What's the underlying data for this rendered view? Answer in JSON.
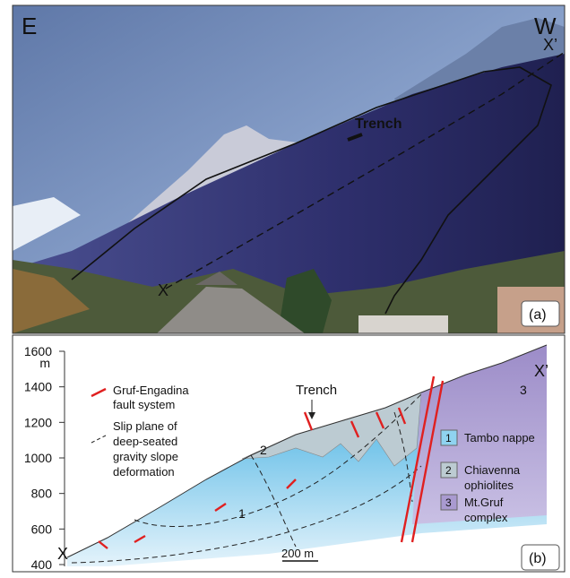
{
  "photo": {
    "left_label": "E",
    "right_label": "W",
    "x_label": "X",
    "x_prime_label": "X’",
    "trench_label": "Trench",
    "panel_label": "(a)"
  },
  "section": {
    "unit": "m",
    "ylim": [
      400,
      1600
    ],
    "yticks": [
      400,
      600,
      800,
      1000,
      1200,
      1400,
      1600
    ],
    "x_label": "X",
    "x_prime_label": "X’",
    "trench_label": "Trench",
    "scale_label": "200 m",
    "panel_label": "(b)",
    "unit_numbers": [
      "1",
      "2",
      "3"
    ],
    "fault_legend": [
      "Gruf-Engadina",
      "fault system"
    ],
    "slip_legend": [
      "Slip plane of",
      "deep-seated",
      "gravity slope",
      "deformation"
    ],
    "legend": [
      {
        "number": "1",
        "lines": [
          "Tambo nappe"
        ],
        "color": "#8fd3f0"
      },
      {
        "number": "2",
        "lines": [
          "Chiavenna",
          "ophiolites"
        ],
        "color": "#bccbd2"
      },
      {
        "number": "3",
        "lines": [
          "Mt.Gruf",
          "complex"
        ],
        "color": "#a99ad0"
      }
    ]
  }
}
